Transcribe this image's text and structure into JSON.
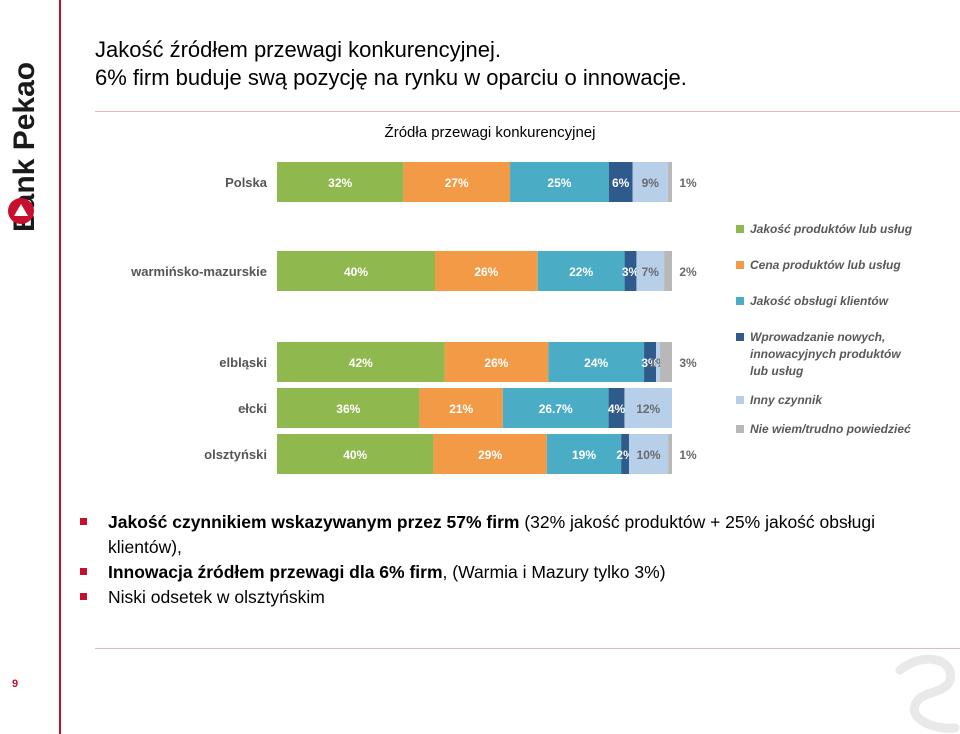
{
  "brand": {
    "name": "Bank Pekao"
  },
  "title": {
    "line1": "Jakość źródłem przewagi konkurencyjnej.",
    "line2": "6% firm buduje swą pozycję na rynku w oparciu o innowacje."
  },
  "colors": {
    "accent": "#c8102e",
    "green": "#8fb84e",
    "orange": "#f39a47",
    "teal": "#4bacc6",
    "navy": "#2e5a8c",
    "lightblue": "#b7cfe9",
    "gray": "#b8b8b8"
  },
  "chart_data": {
    "type": "bar",
    "stacked": true,
    "orientation": "horizontal",
    "title": "Źródła przewagi konkurencyjnej",
    "categories": [
      "Polska",
      "warmińsko-mazurskie",
      "elbląski",
      "ełcki",
      "olsztyński"
    ],
    "series": [
      {
        "name": "Jakość produktów lub usług",
        "color": "#8fb84e",
        "values": [
          32,
          40,
          42,
          36,
          40
        ],
        "labels": [
          "32%",
          "40%",
          "42%",
          "36%",
          "40%"
        ]
      },
      {
        "name": "Cena produktów lub usług",
        "color": "#f39a47",
        "values": [
          27,
          26,
          26,
          21,
          29
        ],
        "labels": [
          "27%",
          "26%",
          "26%",
          "21%",
          "29%"
        ]
      },
      {
        "name": "Jakość obsługi klientów",
        "color": "#4bacc6",
        "values": [
          25,
          22,
          24,
          26.7,
          19
        ],
        "labels": [
          "25%",
          "22%",
          "24%",
          "26.7%",
          "19%"
        ]
      },
      {
        "name": "Wprowadzanie nowych, innowacyjnych produktów lub usług",
        "color": "#2e5a8c",
        "values": [
          6,
          3,
          3,
          4,
          2
        ],
        "labels": [
          "6%",
          "3%",
          "3%",
          "4%",
          "2%"
        ]
      },
      {
        "name": "Inny czynnik",
        "color": "#b7cfe9",
        "values": [
          9,
          7,
          1,
          12,
          10
        ],
        "labels": [
          "9%",
          "7%",
          "1%",
          "12%",
          "10%"
        ]
      },
      {
        "name": "Nie wiem/trudno powiedzieć",
        "color": "#b8b8b8",
        "values": [
          1,
          2,
          3,
          0,
          1
        ],
        "labels": [
          "1%",
          "2%",
          "3%",
          "",
          "1%"
        ]
      }
    ],
    "legend_position": "right",
    "grid": false
  },
  "bullets": [
    {
      "bold": "Jakość czynnikiem wskazywanym przez 57% firm",
      "normal": " (32% jakość produktów + 25% jakość obsługi klientów),"
    },
    {
      "bold": "Innowacja źródłem przewagi dla 6% firm",
      "normal": ", (Warmia i Mazury tylko 3%)"
    },
    {
      "bold": "",
      "normal": "Niski odsetek w olsztyńskim"
    }
  ],
  "page": {
    "number": "9"
  }
}
